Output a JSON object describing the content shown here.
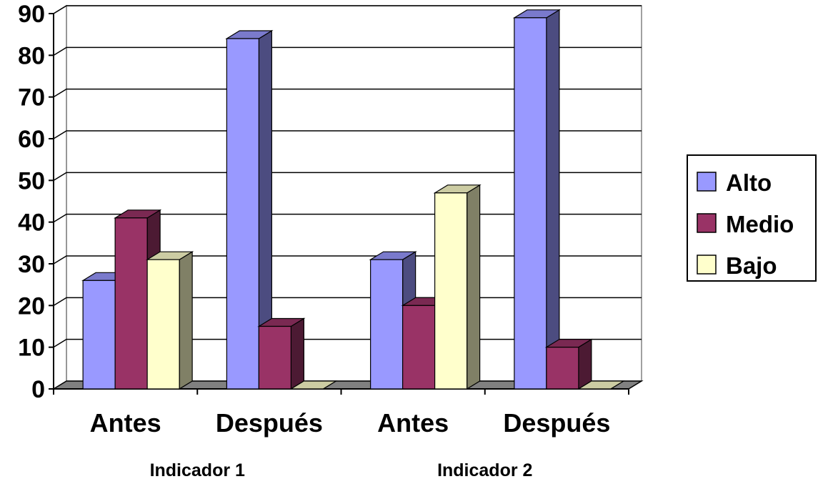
{
  "chart_data": {
    "type": "bar",
    "categories": [
      "Antes",
      "Después",
      "Antes",
      "Después"
    ],
    "groups": [
      "Indicador 1",
      "Indicador 2"
    ],
    "series": [
      {
        "name": "Alto",
        "values": [
          26,
          84,
          31,
          89
        ]
      },
      {
        "name": "Medio",
        "values": [
          41,
          15,
          20,
          10
        ]
      },
      {
        "name": "Bajo",
        "values": [
          31,
          0,
          47,
          0
        ]
      }
    ],
    "ylim": [
      0,
      90
    ],
    "yticks": [
      "0",
      "10",
      "20",
      "30",
      "40",
      "50",
      "60",
      "70",
      "80",
      "90"
    ],
    "grid": true,
    "legend": "right",
    "colors": {
      "Alto": {
        "front": "#9999ff",
        "top": "#7a7acc",
        "side": "#4c4c80"
      },
      "Medio": {
        "front": "#993366",
        "top": "#7a2952",
        "side": "#4c1a33"
      },
      "Bajo": {
        "front": "#ffffcc",
        "top": "#cccca3",
        "side": "#808066"
      },
      "floor": "#808080"
    }
  }
}
